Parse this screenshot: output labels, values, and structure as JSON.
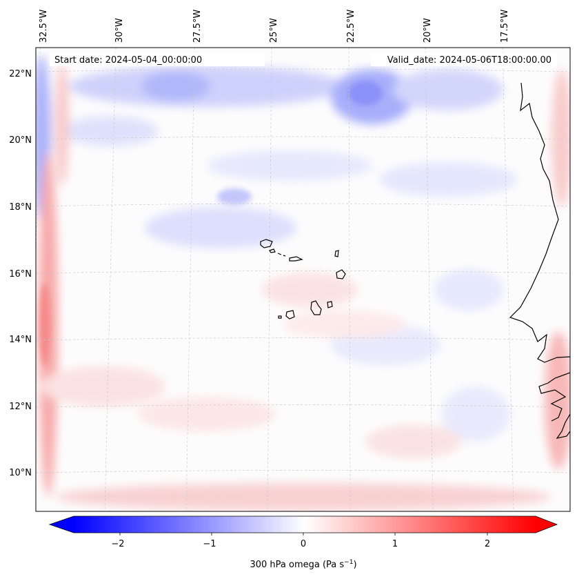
{
  "header": {
    "start_label": "Start date: 2024-05-04_00:00:00",
    "valid_label": "Valid_date: 2024-05-06T18:00:00.00"
  },
  "axes": {
    "lon_labels": [
      "32.5°W",
      "30°W",
      "27.5°W",
      "25°W",
      "22.5°W",
      "20°W",
      "17.5°W"
    ],
    "lat_labels": [
      "22°N",
      "20°N",
      "18°N",
      "16°N",
      "14°N",
      "12°N",
      "10°N"
    ]
  },
  "colorbar": {
    "ticks": [
      "−2",
      "−1",
      "0",
      "1",
      "2"
    ],
    "label": "300 hPa omega (Pa s",
    "label_sup": "−1",
    "label_end": ")",
    "min": -2.7,
    "max": 2.7
  },
  "colors": {
    "negative": "#0000ff",
    "positive": "#ff0000",
    "coast": "#000000",
    "grid": "#cccccc"
  }
}
